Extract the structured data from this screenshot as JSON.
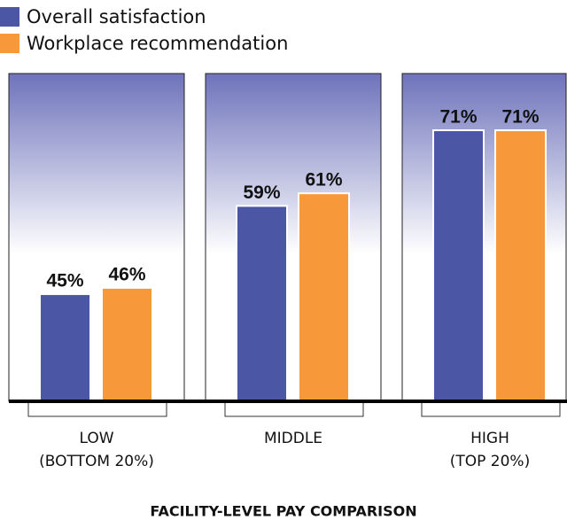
{
  "chart_data": {
    "type": "bar",
    "title": "FACILITY-LEVEL PAY COMPARISON",
    "categories": [
      [
        "LOW",
        "(BOTTOM 20%)"
      ],
      [
        "MIDDLE"
      ],
      [
        "HIGH",
        "(TOP 20%)"
      ]
    ],
    "series": [
      {
        "name": "Overall satisfaction",
        "color": "#4b56a5",
        "values": [
          45,
          59,
          71
        ],
        "value_labels": [
          "45%",
          "59%",
          "71%"
        ]
      },
      {
        "name": "Workplace recommendation",
        "color": "#f7993a",
        "values": [
          46,
          61,
          71
        ],
        "value_labels": [
          "46%",
          "61%",
          "71%"
        ]
      }
    ],
    "ylim": [
      28,
      80
    ]
  }
}
